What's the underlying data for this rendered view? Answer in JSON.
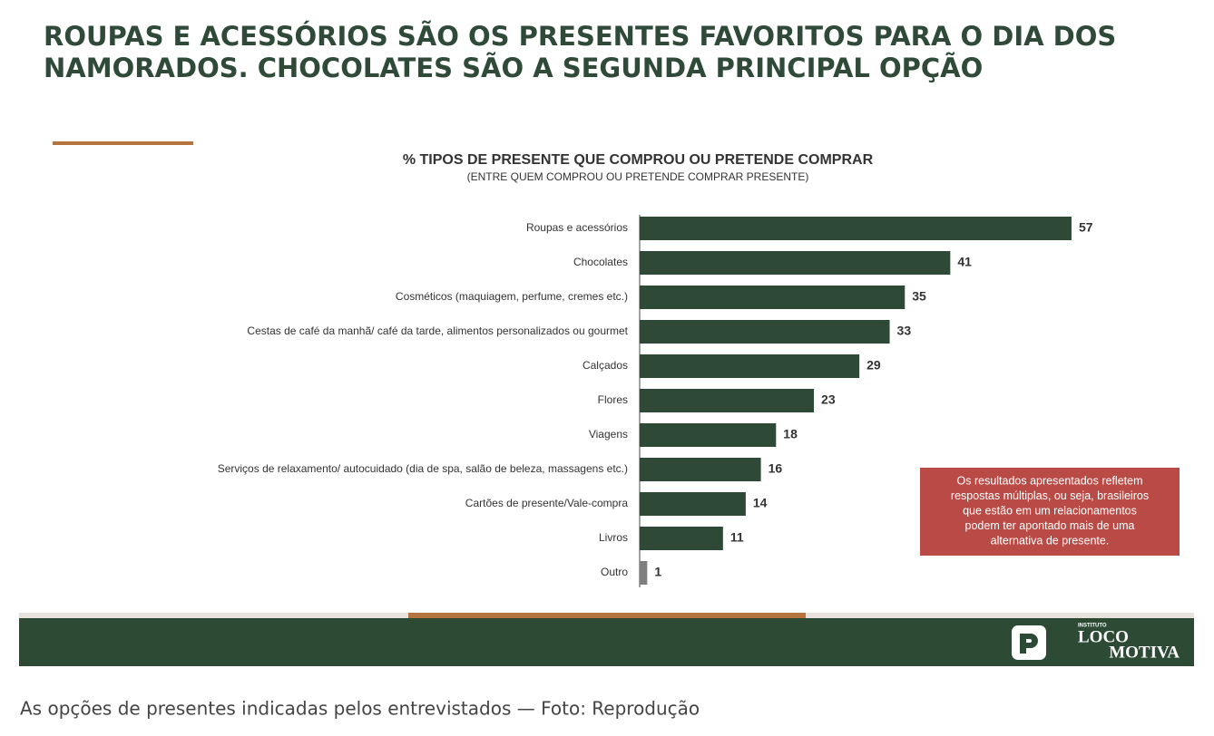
{
  "slide": {
    "title": [
      "ROUPAS E ACESSÓRIOS SÃO OS PRESENTES FAVORITOS PARA O DIA DOS",
      "NAMORADOS. CHOCOLATES SÃO A SEGUNDA PRINCIPAL OPÇÃO"
    ],
    "note": [
      "Os resultados apresentados refletem",
      "respostas múltiplas, ou seja, brasileiros",
      "que estão em um relacionamentos",
      "podem ter apontado mais de uma",
      "alternativa de presente."
    ],
    "logo": {
      "small": "INSTITUTO",
      "line1": "LOCO",
      "line2": "MOTIVA"
    }
  },
  "chart_data": {
    "type": "barh",
    "title": "% TIPOS DE PRESENTE QUE COMPROU OU PRETENDE COMPRAR",
    "subtitle": "(ENTRE QUEM COMPROU OU PRETENDE COMPRAR PRESENTE)",
    "categories": [
      "Roupas e acessórios",
      "Chocolates",
      "Cosméticos (maquiagem, perfume, cremes etc.)",
      "Cestas de café da manhã/ café da tarde, alimentos personalizados ou gourmet",
      "Calçados",
      "Flores",
      "Viagens",
      "Serviços de relaxamento/ autocuidado (dia de spa, salão de beleza, massagens etc.)",
      "Cartões de presente/Vale-compra",
      "Livros",
      "Outro"
    ],
    "values": [
      57,
      41,
      35,
      33,
      29,
      23,
      18,
      16,
      14,
      11,
      1
    ],
    "colors": [
      "#2e4a37",
      "#2e4a37",
      "#2e4a37",
      "#2e4a37",
      "#2e4a37",
      "#2e4a37",
      "#2e4a37",
      "#2e4a37",
      "#2e4a37",
      "#2e4a37",
      "#7f7f7f"
    ]
  },
  "caption": "As opções de presentes indicadas pelos entrevistados — Foto: Reprodução"
}
